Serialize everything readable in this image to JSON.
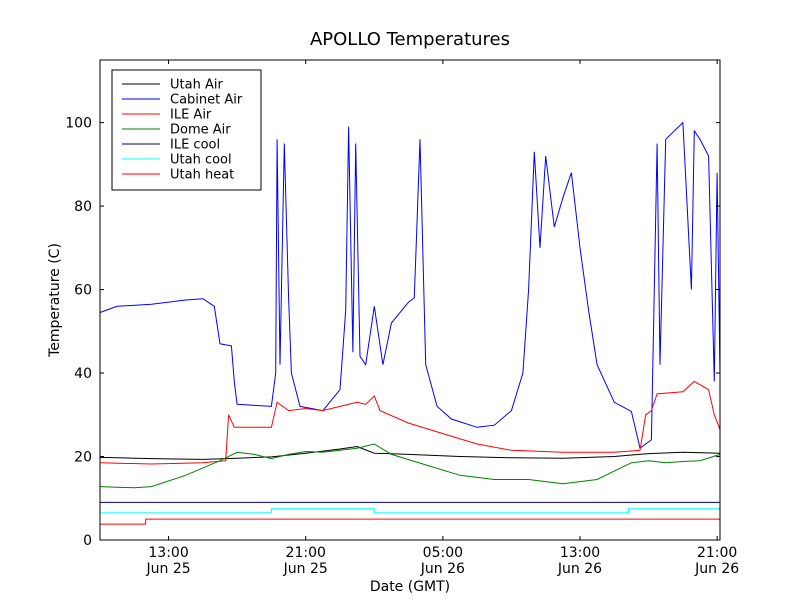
{
  "chart_data": {
    "type": "line",
    "title": "APOLLO Temperatures",
    "xlabel": "Date (GMT)",
    "ylabel": "Temperature (C)",
    "xlim": [
      "2010-06-25 09:00",
      "2010-06-26 21:10"
    ],
    "ylim": [
      0,
      115
    ],
    "x_ticks": [
      {
        "x": "2010-06-25 13:00",
        "label1": "13:00",
        "label2": "Jun 25"
      },
      {
        "x": "2010-06-25 21:00",
        "label1": "21:00",
        "label2": "Jun 25"
      },
      {
        "x": "2010-06-26 05:00",
        "label1": "05:00",
        "label2": "Jun 26"
      },
      {
        "x": "2010-06-26 13:00",
        "label1": "13:00",
        "label2": "Jun 26"
      },
      {
        "x": "2010-06-26 21:00",
        "label1": "21:00",
        "label2": "Jun 26"
      }
    ],
    "y_ticks": [
      0,
      20,
      40,
      60,
      80,
      100
    ],
    "grid": false,
    "legend_position": "top-left",
    "series": [
      {
        "name": "Utah Air",
        "color": "#000000",
        "points": [
          [
            "2010-06-25 09:00",
            19.8
          ],
          [
            "2010-06-25 12:00",
            19.5
          ],
          [
            "2010-06-25 15:00",
            19.3
          ],
          [
            "2010-06-25 17:00",
            19.6
          ],
          [
            "2010-06-25 19:00",
            19.9
          ],
          [
            "2010-06-25 21:00",
            20.8
          ],
          [
            "2010-06-25 23:00",
            21.8
          ],
          [
            "2010-06-26 00:00",
            22.4
          ],
          [
            "2010-06-26 01:00",
            20.8
          ],
          [
            "2010-06-26 03:00",
            20.5
          ],
          [
            "2010-06-26 06:00",
            20.0
          ],
          [
            "2010-06-26 09:00",
            19.7
          ],
          [
            "2010-06-26 12:00",
            19.6
          ],
          [
            "2010-06-26 15:00",
            20.0
          ],
          [
            "2010-06-26 17:00",
            20.7
          ],
          [
            "2010-06-26 19:00",
            21.0
          ],
          [
            "2010-06-26 21:10",
            20.8
          ]
        ]
      },
      {
        "name": "Cabinet Air",
        "color": "#0000ff",
        "points": [
          [
            "2010-06-25 09:00",
            54.5
          ],
          [
            "2010-06-25 10:00",
            56.0
          ],
          [
            "2010-06-25 12:00",
            56.5
          ],
          [
            "2010-06-25 14:00",
            57.5
          ],
          [
            "2010-06-25 15:00",
            57.8
          ],
          [
            "2010-06-25 15:40",
            56.0
          ],
          [
            "2010-06-25 16:00",
            47.0
          ],
          [
            "2010-06-25 16:40",
            46.5
          ],
          [
            "2010-06-25 16:50",
            38.0
          ],
          [
            "2010-06-25 17:00",
            32.5
          ],
          [
            "2010-06-25 19:00",
            32.0
          ],
          [
            "2010-06-25 19:15",
            40.0
          ],
          [
            "2010-06-25 19:20",
            96.0
          ],
          [
            "2010-06-25 19:30",
            42.0
          ],
          [
            "2010-06-25 19:45",
            95.0
          ],
          [
            "2010-06-25 20:00",
            58.0
          ],
          [
            "2010-06-25 20:10",
            40.0
          ],
          [
            "2010-06-25 20:40",
            32.0
          ],
          [
            "2010-06-25 22:00",
            31.0
          ],
          [
            "2010-06-25 23:00",
            36.0
          ],
          [
            "2010-06-25 23:20",
            55.0
          ],
          [
            "2010-06-25 23:30",
            99.0
          ],
          [
            "2010-06-25 23:45",
            45.0
          ],
          [
            "2010-06-25 23:55",
            95.0
          ],
          [
            "2010-06-26 00:10",
            44.0
          ],
          [
            "2010-06-26 00:30",
            42.0
          ],
          [
            "2010-06-26 01:00",
            56.0
          ],
          [
            "2010-06-26 01:30",
            42.0
          ],
          [
            "2010-06-26 02:00",
            52.0
          ],
          [
            "2010-06-26 03:00",
            57.0
          ],
          [
            "2010-06-26 03:20",
            58.0
          ],
          [
            "2010-06-26 03:40",
            96.0
          ],
          [
            "2010-06-26 04:00",
            42.0
          ],
          [
            "2010-06-26 04:40",
            32.0
          ],
          [
            "2010-06-26 05:30",
            29.0
          ],
          [
            "2010-06-26 07:00",
            27.0
          ],
          [
            "2010-06-26 08:00",
            27.5
          ],
          [
            "2010-06-26 09:00",
            31.0
          ],
          [
            "2010-06-26 09:40",
            40.0
          ],
          [
            "2010-06-26 10:00",
            60.0
          ],
          [
            "2010-06-26 10:20",
            93.0
          ],
          [
            "2010-06-26 10:40",
            70.0
          ],
          [
            "2010-06-26 11:00",
            92.0
          ],
          [
            "2010-06-26 11:30",
            75.0
          ],
          [
            "2010-06-26 12:00",
            82.0
          ],
          [
            "2010-06-26 12:30",
            88.0
          ],
          [
            "2010-06-26 13:00",
            70.0
          ],
          [
            "2010-06-26 13:30",
            55.0
          ],
          [
            "2010-06-26 14:00",
            42.0
          ],
          [
            "2010-06-26 15:00",
            33.0
          ],
          [
            "2010-06-26 16:00",
            30.8
          ],
          [
            "2010-06-26 16:30",
            22.0
          ],
          [
            "2010-06-26 17:10",
            24.0
          ],
          [
            "2010-06-26 17:30",
            95.0
          ],
          [
            "2010-06-26 17:40",
            42.0
          ],
          [
            "2010-06-26 18:00",
            96.0
          ],
          [
            "2010-06-26 19:00",
            100.0
          ],
          [
            "2010-06-26 19:30",
            60.0
          ],
          [
            "2010-06-26 19:40",
            98.0
          ],
          [
            "2010-06-26 20:00",
            96.0
          ],
          [
            "2010-06-26 20:30",
            92.0
          ],
          [
            "2010-06-26 20:50",
            38.0
          ],
          [
            "2010-06-26 21:00",
            88.0
          ],
          [
            "2010-06-26 21:10",
            39.5
          ]
        ]
      },
      {
        "name": "ILE Air",
        "color": "#ff0000",
        "points": [
          [
            "2010-06-25 09:00",
            18.5
          ],
          [
            "2010-06-25 12:00",
            18.2
          ],
          [
            "2010-06-25 15:00",
            18.5
          ],
          [
            "2010-06-25 16:20",
            19.0
          ],
          [
            "2010-06-25 16:30",
            30.0
          ],
          [
            "2010-06-25 16:50",
            27.0
          ],
          [
            "2010-06-25 19:00",
            27.0
          ],
          [
            "2010-06-25 19:20",
            33.0
          ],
          [
            "2010-06-25 20:00",
            31.0
          ],
          [
            "2010-06-25 21:00",
            31.5
          ],
          [
            "2010-06-25 22:00",
            31.0
          ],
          [
            "2010-06-25 23:00",
            32.0
          ],
          [
            "2010-06-26 00:00",
            33.0
          ],
          [
            "2010-06-26 00:30",
            32.5
          ],
          [
            "2010-06-26 01:00",
            34.5
          ],
          [
            "2010-06-26 01:20",
            31.0
          ],
          [
            "2010-06-26 03:00",
            28.0
          ],
          [
            "2010-06-26 05:00",
            25.5
          ],
          [
            "2010-06-26 07:00",
            23.0
          ],
          [
            "2010-06-26 09:00",
            21.5
          ],
          [
            "2010-06-26 12:00",
            21.0
          ],
          [
            "2010-06-26 15:00",
            21.0
          ],
          [
            "2010-06-26 16:30",
            21.5
          ],
          [
            "2010-06-26 16:50",
            30.0
          ],
          [
            "2010-06-26 17:10",
            31.0
          ],
          [
            "2010-06-26 17:30",
            35.0
          ],
          [
            "2010-06-26 19:00",
            35.5
          ],
          [
            "2010-06-26 19:40",
            38.0
          ],
          [
            "2010-06-26 20:30",
            36.0
          ],
          [
            "2010-06-26 20:50",
            30.0
          ],
          [
            "2010-06-26 21:10",
            26.5
          ]
        ]
      },
      {
        "name": "Dome Air",
        "color": "#008000",
        "points": [
          [
            "2010-06-25 09:00",
            12.8
          ],
          [
            "2010-06-25 11:00",
            12.5
          ],
          [
            "2010-06-25 12:00",
            12.8
          ],
          [
            "2010-06-25 14:00",
            15.5
          ],
          [
            "2010-06-25 16:00",
            19.0
          ],
          [
            "2010-06-25 17:00",
            21.0
          ],
          [
            "2010-06-25 18:00",
            20.5
          ],
          [
            "2010-06-25 19:00",
            19.5
          ],
          [
            "2010-06-25 20:00",
            20.5
          ],
          [
            "2010-06-25 21:00",
            21.2
          ],
          [
            "2010-06-25 22:00",
            21.0
          ],
          [
            "2010-06-26 00:00",
            22.0
          ],
          [
            "2010-06-26 01:00",
            23.0
          ],
          [
            "2010-06-26 02:00",
            20.5
          ],
          [
            "2010-06-26 04:00",
            18.0
          ],
          [
            "2010-06-26 06:00",
            15.5
          ],
          [
            "2010-06-26 08:00",
            14.5
          ],
          [
            "2010-06-26 10:00",
            14.5
          ],
          [
            "2010-06-26 12:00",
            13.5
          ],
          [
            "2010-06-26 14:00",
            14.5
          ],
          [
            "2010-06-26 15:00",
            16.5
          ],
          [
            "2010-06-26 16:00",
            18.5
          ],
          [
            "2010-06-26 17:00",
            19.0
          ],
          [
            "2010-06-26 18:00",
            18.5
          ],
          [
            "2010-06-26 19:00",
            18.8
          ],
          [
            "2010-06-26 20:00",
            19.0
          ],
          [
            "2010-06-26 21:10",
            20.5
          ]
        ]
      },
      {
        "name": "ILE cool",
        "color": "#000080",
        "points": [
          [
            "2010-06-25 09:00",
            9.0
          ],
          [
            "2010-06-26 21:10",
            9.0
          ]
        ]
      },
      {
        "name": "Utah cool",
        "color": "#00ffff",
        "points": [
          [
            "2010-06-25 09:00",
            6.5
          ],
          [
            "2010-06-25 19:00",
            6.5
          ],
          [
            "2010-06-25 19:00",
            7.5
          ],
          [
            "2010-06-26 01:00",
            7.5
          ],
          [
            "2010-06-26 01:00",
            6.5
          ],
          [
            "2010-06-26 15:50",
            6.5
          ],
          [
            "2010-06-26 15:50",
            7.5
          ],
          [
            "2010-06-26 21:10",
            7.5
          ]
        ]
      },
      {
        "name": "Utah heat",
        "color": "#ff0000",
        "points": [
          [
            "2010-06-25 09:00",
            3.8
          ],
          [
            "2010-06-25 11:40",
            3.8
          ],
          [
            "2010-06-25 11:40",
            5.0
          ],
          [
            "2010-06-26 21:10",
            5.0
          ]
        ]
      }
    ]
  }
}
